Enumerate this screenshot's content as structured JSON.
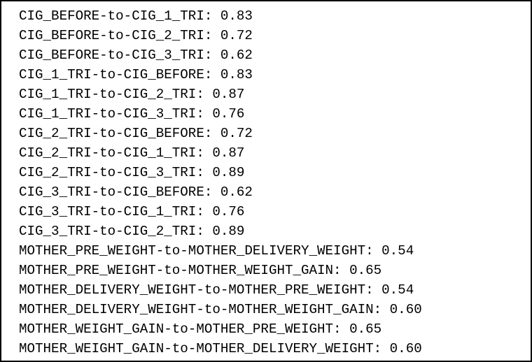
{
  "output": {
    "lines": [
      "CIG_BEFORE-to-CIG_1_TRI: 0.83",
      "CIG_BEFORE-to-CIG_2_TRI: 0.72",
      "CIG_BEFORE-to-CIG_3_TRI: 0.62",
      "CIG_1_TRI-to-CIG_BEFORE: 0.83",
      "CIG_1_TRI-to-CIG_2_TRI: 0.87",
      "CIG_1_TRI-to-CIG_3_TRI: 0.76",
      "CIG_2_TRI-to-CIG_BEFORE: 0.72",
      "CIG_2_TRI-to-CIG_1_TRI: 0.87",
      "CIG_2_TRI-to-CIG_3_TRI: 0.89",
      "CIG_3_TRI-to-CIG_BEFORE: 0.62",
      "CIG_3_TRI-to-CIG_1_TRI: 0.76",
      "CIG_3_TRI-to-CIG_2_TRI: 0.89",
      "MOTHER_PRE_WEIGHT-to-MOTHER_DELIVERY_WEIGHT: 0.54",
      "MOTHER_PRE_WEIGHT-to-MOTHER_WEIGHT_GAIN: 0.65",
      "MOTHER_DELIVERY_WEIGHT-to-MOTHER_PRE_WEIGHT: 0.54",
      "MOTHER_DELIVERY_WEIGHT-to-MOTHER_WEIGHT_GAIN: 0.60",
      "MOTHER_WEIGHT_GAIN-to-MOTHER_PRE_WEIGHT: 0.65",
      "MOTHER_WEIGHT_GAIN-to-MOTHER_DELIVERY_WEIGHT: 0.60"
    ]
  },
  "colors": {
    "text": "#000000",
    "border": "#000000",
    "background": "#ffffff"
  }
}
